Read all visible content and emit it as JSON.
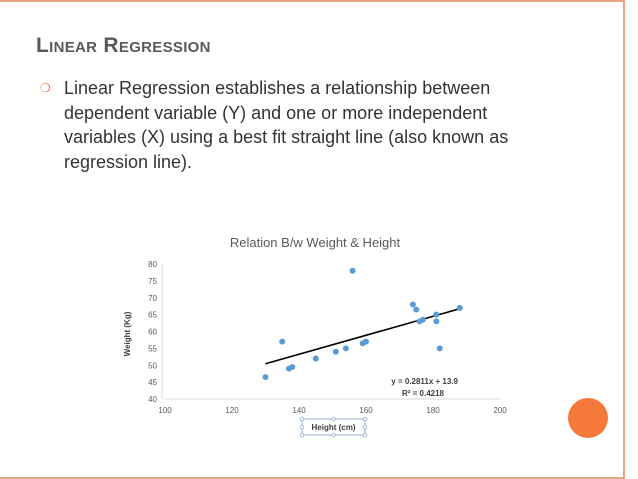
{
  "slide": {
    "title": "Linear Regression",
    "bullet_icon": "ring-bullet-icon",
    "bullet_text": "Linear Regression establishes a relationship between dependent variable (Y) and one or more independent variables (X) using a best fit straight line (also known as regression line).",
    "accent_color": "#f4793b"
  },
  "chart_data": {
    "type": "scatter",
    "title": "Relation B/w Weight & Height",
    "xlabel": "Height (cm)",
    "ylabel": "Weight (Kg)",
    "xlim": [
      100,
      200
    ],
    "ylim": [
      40,
      80
    ],
    "xticks": [
      100,
      120,
      140,
      160,
      180,
      200
    ],
    "yticks": [
      40,
      45,
      50,
      55,
      60,
      65,
      70,
      75,
      80
    ],
    "points": [
      {
        "x": 130,
        "y": 46.5
      },
      {
        "x": 135,
        "y": 57
      },
      {
        "x": 137,
        "y": 49
      },
      {
        "x": 138,
        "y": 49.5
      },
      {
        "x": 145,
        "y": 52
      },
      {
        "x": 151,
        "y": 54
      },
      {
        "x": 154,
        "y": 55
      },
      {
        "x": 156,
        "y": 78
      },
      {
        "x": 159,
        "y": 56.5
      },
      {
        "x": 160,
        "y": 57
      },
      {
        "x": 174,
        "y": 68
      },
      {
        "x": 175,
        "y": 66.5
      },
      {
        "x": 176,
        "y": 63
      },
      {
        "x": 177,
        "y": 63.5
      },
      {
        "x": 181,
        "y": 65
      },
      {
        "x": 181,
        "y": 63
      },
      {
        "x": 182,
        "y": 55
      },
      {
        "x": 188,
        "y": 67
      }
    ],
    "trendline": {
      "x_start": 130,
      "x_end": 188,
      "slope": 0.2811,
      "intercept": 13.9,
      "equation": "y = 0.2811x + 13.9",
      "r2": "R² = 0.4218"
    },
    "grid": false,
    "point_color": "#5b9bd5",
    "line_color": "#000000"
  }
}
